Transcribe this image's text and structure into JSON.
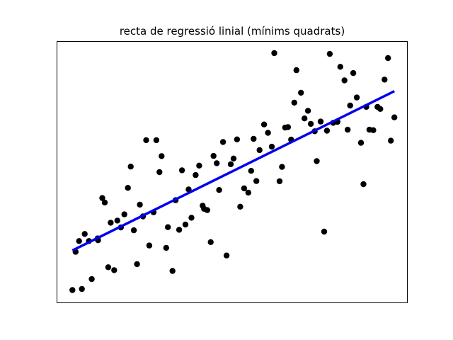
{
  "chart_data": {
    "type": "scatter",
    "title": "recta de regressió linial (mínims quadrats)",
    "xlabel": "",
    "ylabel": "",
    "xlim": [
      0,
      1
    ],
    "ylim": [
      0,
      1
    ],
    "grid": false,
    "axis_ticks": false,
    "series": [
      {
        "kind": "scatter",
        "color": "#000000",
        "points": [
          [
            0.045,
            0.05
          ],
          [
            0.072,
            0.054
          ],
          [
            0.1,
            0.092
          ],
          [
            0.054,
            0.196
          ],
          [
            0.064,
            0.237
          ],
          [
            0.08,
            0.264
          ],
          [
            0.092,
            0.237
          ],
          [
            0.117,
            0.247
          ],
          [
            0.118,
            0.24
          ],
          [
            0.13,
            0.401
          ],
          [
            0.137,
            0.384
          ],
          [
            0.147,
            0.137
          ],
          [
            0.154,
            0.307
          ],
          [
            0.164,
            0.126
          ],
          [
            0.173,
            0.315
          ],
          [
            0.183,
            0.289
          ],
          [
            0.193,
            0.339
          ],
          [
            0.203,
            0.44
          ],
          [
            0.211,
            0.521
          ],
          [
            0.22,
            0.278
          ],
          [
            0.229,
            0.149
          ],
          [
            0.237,
            0.376
          ],
          [
            0.246,
            0.331
          ],
          [
            0.255,
            0.622
          ],
          [
            0.264,
            0.22
          ],
          [
            0.276,
            0.347
          ],
          [
            0.284,
            0.622
          ],
          [
            0.293,
            0.5
          ],
          [
            0.299,
            0.561
          ],
          [
            0.312,
            0.211
          ],
          [
            0.317,
            0.29
          ],
          [
            0.33,
            0.123
          ],
          [
            0.339,
            0.393
          ],
          [
            0.349,
            0.28
          ],
          [
            0.357,
            0.507
          ],
          [
            0.367,
            0.3
          ],
          [
            0.376,
            0.434
          ],
          [
            0.384,
            0.326
          ],
          [
            0.396,
            0.489
          ],
          [
            0.406,
            0.525
          ],
          [
            0.416,
            0.372
          ],
          [
            0.42,
            0.36
          ],
          [
            0.429,
            0.355
          ],
          [
            0.439,
            0.233
          ],
          [
            0.447,
            0.562
          ],
          [
            0.456,
            0.534
          ],
          [
            0.463,
            0.432
          ],
          [
            0.474,
            0.615
          ],
          [
            0.484,
            0.182
          ],
          [
            0.496,
            0.53
          ],
          [
            0.504,
            0.552
          ],
          [
            0.514,
            0.625
          ],
          [
            0.523,
            0.368
          ],
          [
            0.534,
            0.438
          ],
          [
            0.546,
            0.422
          ],
          [
            0.554,
            0.505
          ],
          [
            0.561,
            0.627
          ],
          [
            0.569,
            0.466
          ],
          [
            0.578,
            0.584
          ],
          [
            0.591,
            0.682
          ],
          [
            0.602,
            0.65
          ],
          [
            0.613,
            0.597
          ],
          [
            0.62,
            0.954
          ],
          [
            0.635,
            0.465
          ],
          [
            0.642,
            0.52
          ],
          [
            0.651,
            0.67
          ],
          [
            0.659,
            0.672
          ],
          [
            0.668,
            0.624
          ],
          [
            0.677,
            0.765
          ],
          [
            0.683,
            0.889
          ],
          [
            0.696,
            0.803
          ],
          [
            0.706,
            0.705
          ],
          [
            0.716,
            0.734
          ],
          [
            0.724,
            0.684
          ],
          [
            0.735,
            0.656
          ],
          [
            0.741,
            0.542
          ],
          [
            0.752,
            0.693
          ],
          [
            0.762,
            0.273
          ],
          [
            0.77,
            0.658
          ],
          [
            0.778,
            0.951
          ],
          [
            0.788,
            0.688
          ],
          [
            0.8,
            0.692
          ],
          [
            0.808,
            0.902
          ],
          [
            0.82,
            0.85
          ],
          [
            0.829,
            0.662
          ],
          [
            0.836,
            0.754
          ],
          [
            0.845,
            0.878
          ],
          [
            0.855,
            0.785
          ],
          [
            0.867,
            0.612
          ],
          [
            0.874,
            0.454
          ],
          [
            0.882,
            0.749
          ],
          [
            0.891,
            0.662
          ],
          [
            0.902,
            0.66
          ],
          [
            0.914,
            0.749
          ],
          [
            0.922,
            0.741
          ],
          [
            0.934,
            0.853
          ],
          [
            0.944,
            0.935
          ],
          [
            0.952,
            0.62
          ],
          [
            0.962,
            0.709
          ]
        ]
      },
      {
        "kind": "line",
        "color": "#0000ee",
        "points": [
          [
            0.045,
            0.201
          ],
          [
            0.962,
            0.809
          ]
        ]
      }
    ]
  }
}
